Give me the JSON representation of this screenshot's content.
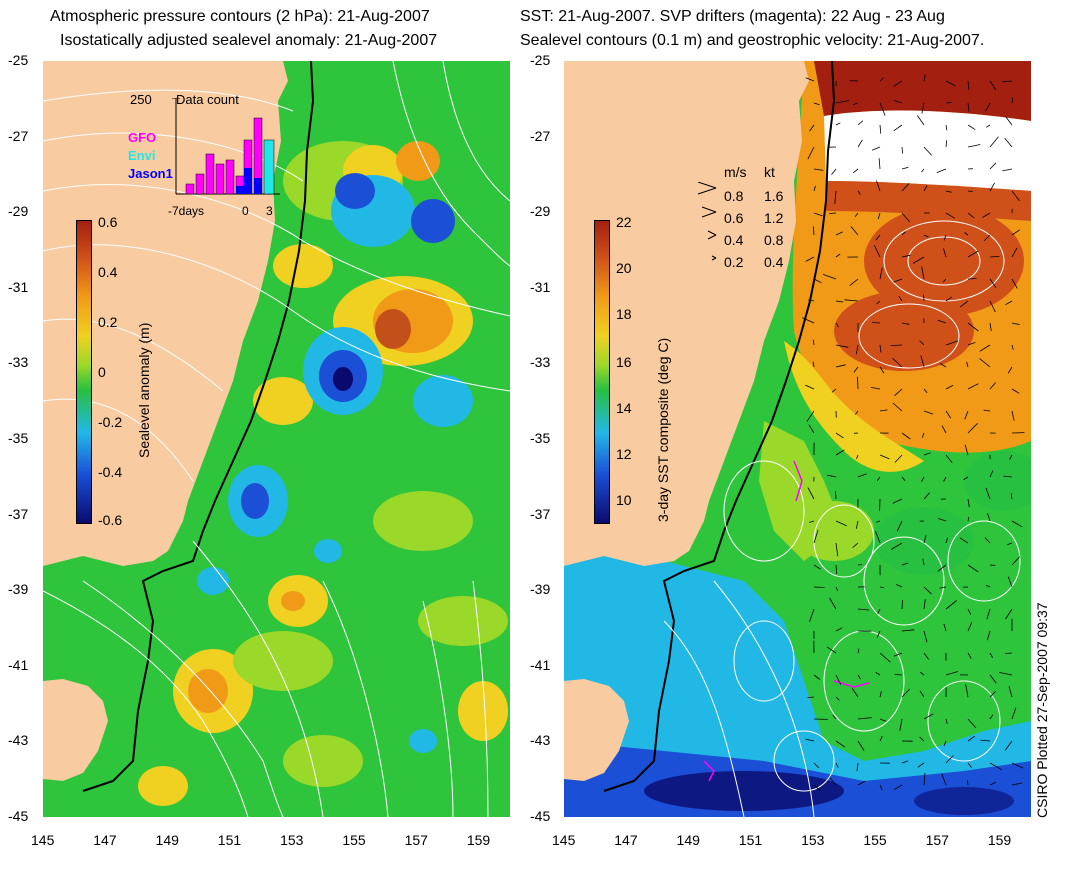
{
  "left_panel": {
    "title_line1": "Atmospheric pressure contours (2 hPa): 21-Aug-2007",
    "title_line2": "Isostatically adjusted sealevel anomaly: 21-Aug-2007",
    "colorbar": {
      "label": "Sealevel anomaly (m)",
      "ticks": [
        "0.6",
        "0.4",
        "0.2",
        "0",
        "-0.2",
        "-0.4",
        "-0.6"
      ],
      "colors": [
        "#0a0a6e",
        "#1a4fd6",
        "#22b8e6",
        "#27c040",
        "#9ad82a",
        "#f0d020",
        "#f09a18",
        "#d0501a",
        "#a32010"
      ]
    },
    "inset": {
      "count_label": "250",
      "title": "Data count",
      "satellites": [
        "GFO",
        "Envi",
        "Jason1"
      ],
      "satellite_colors": [
        "#ff00ff",
        "#22e6e6",
        "#0000ff"
      ],
      "axis_labels": [
        "-7days",
        "0",
        "3"
      ]
    }
  },
  "right_panel": {
    "title_line1": "SST: 21-Aug-2007. SVP drifters (magenta): 22 Aug - 23 Aug",
    "title_line2": "Sealevel contours (0.1 m) and geostrophic velocity: 21-Aug-2007.",
    "colorbar": {
      "label": "3-day SST composite (deg C)",
      "ticks": [
        "22",
        "20",
        "18",
        "16",
        "14",
        "12",
        "10"
      ],
      "colors": [
        "#0a0a6e",
        "#1a4fd6",
        "#22b8e6",
        "#27c040",
        "#9ad82a",
        "#f0d020",
        "#f09a18",
        "#d0501a",
        "#a32010"
      ]
    },
    "velocity_legend": {
      "header_ms": "m/s",
      "header_kt": "kt",
      "rows": [
        {
          "ms": "0.8",
          "kt": "1.6"
        },
        {
          "ms": "0.6",
          "kt": "1.2"
        },
        {
          "ms": "0.4",
          "kt": "0.8"
        },
        {
          "ms": "0.2",
          "kt": "0.4"
        }
      ]
    }
  },
  "axes": {
    "lat_ticks": [
      "-25",
      "-27",
      "-29",
      "-31",
      "-33",
      "-35",
      "-37",
      "-39",
      "-41",
      "-43",
      "-45"
    ],
    "lon_ticks": [
      "145",
      "147",
      "149",
      "151",
      "153",
      "155",
      "157",
      "159"
    ]
  },
  "colors": {
    "land": "#f9cba0",
    "coast": "#000000",
    "contour": "#ffffff",
    "drifter": "#ff00ff"
  },
  "footer": {
    "plotted": "CSIRO Plotted 27-Sep-2007 09:37"
  }
}
